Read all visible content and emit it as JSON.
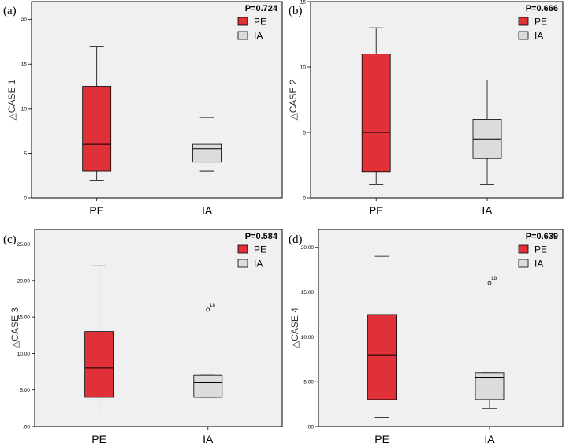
{
  "chart_data": [
    {
      "type": "box",
      "panel_label": "(a)",
      "p_value": "P=0.724",
      "ylabel": "△CASE 1",
      "categories": [
        "PE",
        "IA"
      ],
      "ylim": [
        0,
        22
      ],
      "yticks": [
        0,
        5,
        10,
        15,
        20
      ],
      "ytick_labels": [
        "0",
        "5",
        "10",
        "15",
        "20"
      ],
      "legend": [
        {
          "label": "PE",
          "color": "#e03138"
        },
        {
          "label": "IA",
          "color": "#dcdcdc"
        }
      ],
      "series": [
        {
          "name": "PE",
          "color": "#e03138",
          "min": 2,
          "q1": 3,
          "median": 6,
          "q3": 12.5,
          "max": 17,
          "outliers": []
        },
        {
          "name": "IA",
          "color": "#dcdcdc",
          "min": 3,
          "q1": 4,
          "median": 5.5,
          "q3": 6,
          "max": 9,
          "outliers": []
        }
      ]
    },
    {
      "type": "box",
      "panel_label": "(b)",
      "p_value": "P=0.666",
      "ylabel": "△CASE 2",
      "categories": [
        "PE",
        "IA"
      ],
      "ylim": [
        0,
        15
      ],
      "yticks": [
        0,
        5,
        10,
        15
      ],
      "ytick_labels": [
        "0",
        "5",
        "10",
        "15"
      ],
      "legend": [
        {
          "label": "PE",
          "color": "#e03138"
        },
        {
          "label": "IA",
          "color": "#dcdcdc"
        }
      ],
      "series": [
        {
          "name": "PE",
          "color": "#e03138",
          "min": 1,
          "q1": 2,
          "median": 5,
          "q3": 11,
          "max": 13,
          "outliers": []
        },
        {
          "name": "IA",
          "color": "#dcdcdc",
          "min": 1,
          "q1": 3,
          "median": 4.5,
          "q3": 6,
          "max": 9,
          "outliers": []
        }
      ]
    },
    {
      "type": "box",
      "panel_label": "(c)",
      "p_value": "P=0.584",
      "ylabel": "△CASE 3",
      "categories": [
        "PE",
        "IA"
      ],
      "ylim": [
        0,
        27
      ],
      "yticks": [
        0,
        5,
        10,
        15,
        20,
        25
      ],
      "ytick_labels": [
        ".00",
        "5.00",
        "10.00",
        "15.00",
        "20.00",
        "25.00"
      ],
      "legend": [
        {
          "label": "PE",
          "color": "#e03138"
        },
        {
          "label": "IA",
          "color": "#dcdcdc"
        }
      ],
      "series": [
        {
          "name": "PE",
          "color": "#e03138",
          "min": 2,
          "q1": 4,
          "median": 8,
          "q3": 13,
          "max": 22,
          "outliers": []
        },
        {
          "name": "IA",
          "color": "#dcdcdc",
          "min": 4,
          "q1": 4,
          "median": 6,
          "q3": 7,
          "max": 7,
          "outliers": [
            {
              "value": 16,
              "label": "18"
            }
          ]
        }
      ]
    },
    {
      "type": "box",
      "panel_label": "(d)",
      "p_value": "P=0.639",
      "ylabel": "△CASE 4",
      "categories": [
        "PE",
        "IA"
      ],
      "ylim": [
        0,
        22
      ],
      "yticks": [
        0,
        5,
        10,
        15,
        20
      ],
      "ytick_labels": [
        ".00",
        "5.00",
        "10.00",
        "15.00",
        "20.00"
      ],
      "legend": [
        {
          "label": "PE",
          "color": "#e03138"
        },
        {
          "label": "IA",
          "color": "#dcdcdc"
        }
      ],
      "series": [
        {
          "name": "PE",
          "color": "#e03138",
          "min": 1,
          "q1": 3,
          "median": 8,
          "q3": 12.5,
          "max": 19,
          "outliers": []
        },
        {
          "name": "IA",
          "color": "#dcdcdc",
          "min": 2,
          "q1": 3,
          "median": 5.5,
          "q3": 6,
          "max": 6,
          "outliers": [
            {
              "value": 16,
              "label": "18"
            }
          ]
        }
      ]
    }
  ]
}
